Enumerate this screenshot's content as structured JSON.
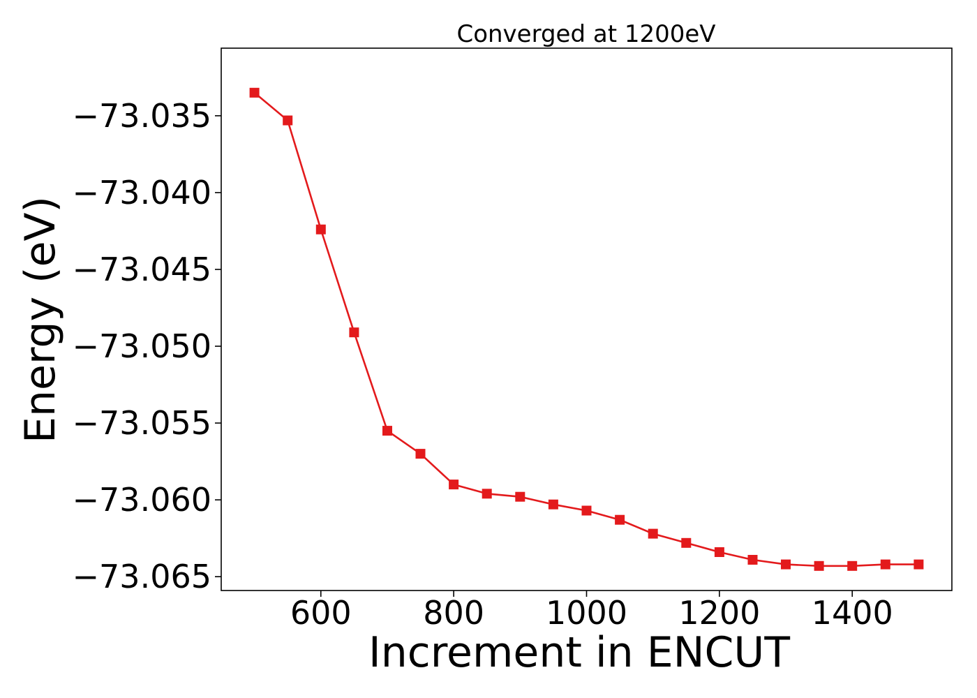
{
  "chart_data": {
    "type": "line",
    "title": "Converged at 1200eV",
    "xlabel": "Increment in ENCUT",
    "ylabel": "Energy (eV)",
    "xlim": [
      450,
      1550
    ],
    "ylim": [
      -73.0659,
      -73.0306
    ],
    "x_ticks": [
      600,
      800,
      1000,
      1200,
      1400
    ],
    "x_tick_labels": [
      "600",
      "800",
      "1000",
      "1200",
      "1400"
    ],
    "y_ticks": [
      -73.035,
      -73.04,
      -73.045,
      -73.05,
      -73.055,
      -73.06,
      -73.065
    ],
    "y_tick_labels": [
      "−73.035",
      "−73.040",
      "−73.045",
      "−73.050",
      "−73.055",
      "−73.060",
      "−73.065"
    ],
    "grid": false,
    "legend": "none",
    "series": [
      {
        "color": "#e31a1c",
        "marker": "square",
        "x": [
          500,
          550,
          600,
          650,
          700,
          750,
          800,
          850,
          900,
          950,
          1000,
          1050,
          1100,
          1150,
          1200,
          1250,
          1300,
          1350,
          1400,
          1450,
          1500
        ],
        "y": [
          -73.0335,
          -73.0353,
          -73.0424,
          -73.0491,
          -73.0555,
          -73.057,
          -73.059,
          -73.0596,
          -73.0598,
          -73.0603,
          -73.0607,
          -73.0613,
          -73.0622,
          -73.0628,
          -73.0634,
          -73.0639,
          -73.0642,
          -73.0643,
          -73.0643,
          -73.0642,
          -73.0642
        ]
      }
    ]
  }
}
